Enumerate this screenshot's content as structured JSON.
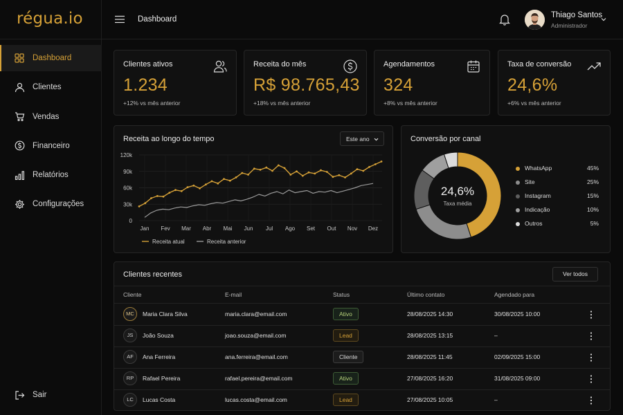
{
  "app": {
    "logo": "régua.io"
  },
  "sidebar": {
    "items": [
      {
        "label": "Dashboard",
        "icon": "grid-icon",
        "active": true
      },
      {
        "label": "Clientes",
        "icon": "user-icon"
      },
      {
        "label": "Vendas",
        "icon": "cart-icon"
      },
      {
        "label": "Financeiro",
        "icon": "dollar-icon"
      },
      {
        "label": "Relatórios",
        "icon": "bar-chart-icon"
      },
      {
        "label": "Configurações",
        "icon": "gear-icon"
      }
    ],
    "logout_label": "Sair"
  },
  "header": {
    "title": "Dashboard",
    "user_name": "Thiago Santos",
    "user_role": "Administrador"
  },
  "kpis": [
    {
      "label": "Clientes ativos",
      "value": "1.234",
      "sub": "+12% vs mês anterior",
      "icon": "users-icon"
    },
    {
      "label": "Receita do mês",
      "value": "R$ 98.765,43",
      "sub": "+18% vs mês anterior",
      "icon": "dollar-circle-icon"
    },
    {
      "label": "Agendamentos",
      "value": "324",
      "sub": "+8% vs mês anterior",
      "icon": "calendar-icon"
    },
    {
      "label": "Taxa de conversão",
      "value": "24,6%",
      "sub": "+6% vs mês anterior",
      "icon": "trend-up-icon"
    }
  ],
  "revenue_card": {
    "title": "Receita ao longo do tempo",
    "period_select": "Este ano"
  },
  "conversion_card": {
    "title": "Conversão por canal",
    "center_value": "24,6%",
    "center_label": "Taxa média"
  },
  "colors": {
    "accent": "#d6a137",
    "background": "#0b0b0b",
    "card": "#111111",
    "secondary_line": "#9b9b9b"
  },
  "chart_data": [
    {
      "type": "line",
      "title": "Receita ao longo do tempo",
      "x_labels": [
        "Jan",
        "Fev",
        "Mar",
        "Abr",
        "Mai",
        "Jun",
        "Jul",
        "Ago",
        "Set",
        "Out",
        "Nov",
        "Dez"
      ],
      "yticks": [
        "120k",
        "90k",
        "60k",
        "30k",
        "0"
      ],
      "ylim": [
        0,
        120000
      ],
      "grid": true,
      "legend": "bottom",
      "series": [
        {
          "name": "Receita atual",
          "color": "#d6a137",
          "values": [
            26000,
            32000,
            41000,
            45000,
            44000,
            51000,
            56000,
            54000,
            61000,
            64000,
            59000,
            66000,
            72000,
            68000,
            76000,
            73000,
            79000,
            87000,
            84000,
            95000,
            93000,
            97000,
            91000,
            101000,
            96000,
            84000,
            90000,
            82000,
            88000,
            86000,
            92000,
            89000,
            80000,
            83000,
            79000,
            86000,
            94000,
            91000,
            98000,
            103000,
            108000
          ]
        },
        {
          "name": "Receita anterior",
          "color": "#9b9b9b",
          "values": [
            6000,
            14000,
            19000,
            21000,
            20000,
            23000,
            25000,
            24000,
            27000,
            29000,
            28000,
            31000,
            33000,
            32000,
            35000,
            38000,
            36000,
            39000,
            43000,
            48000,
            45000,
            50000,
            53000,
            49000,
            56000,
            51000,
            53000,
            55000,
            50000,
            53000,
            52000,
            55000,
            51000,
            54000,
            57000,
            60000,
            64000,
            66000,
            68000
          ]
        }
      ]
    },
    {
      "type": "pie",
      "title": "Conversão por canal",
      "slices": [
        {
          "name": "WhatsApp",
          "pct_label": "45%",
          "value": 45,
          "color": "#d6a137"
        },
        {
          "name": "Site",
          "pct_label": "25%",
          "value": 25,
          "color": "#8d8d8d"
        },
        {
          "name": "Instagram",
          "pct_label": "15%",
          "value": 15,
          "color": "#5e5e5e"
        },
        {
          "name": "Indicação",
          "pct_label": "10%",
          "value": 10,
          "color": "#9f9f9f"
        },
        {
          "name": "Outros",
          "pct_label": "5%",
          "value": 5,
          "color": "#dcdcdc"
        }
      ]
    }
  ],
  "table": {
    "title": "Clientes recentes",
    "view_all_label": "Ver todos",
    "columns": [
      "Cliente",
      "E-mail",
      "Status",
      "Último contato",
      "Agendado para"
    ],
    "rows": [
      {
        "initials": "MC",
        "name": "Maria Clara Silva",
        "email": "maria.clara@email.com",
        "status": "Ativo",
        "last_contact": "28/08/2025 14:30",
        "scheduled": "30/08/2025 10:00"
      },
      {
        "initials": "JS",
        "name": "João Souza",
        "email": "joao.souza@email.com",
        "status": "Lead",
        "last_contact": "28/08/2025 13:15",
        "scheduled": "–"
      },
      {
        "initials": "AF",
        "name": "Ana Ferreira",
        "email": "ana.ferreira@email.com",
        "status": "Cliente",
        "last_contact": "28/08/2025 11:45",
        "scheduled": "02/09/2025 15:00"
      },
      {
        "initials": "RP",
        "name": "Rafael Pereira",
        "email": "rafael.pereira@email.com",
        "status": "Ativo",
        "last_contact": "27/08/2025 16:20",
        "scheduled": "31/08/2025 09:00"
      },
      {
        "initials": "LC",
        "name": "Lucas Costa",
        "email": "lucas.costa@email.com",
        "status": "Lead",
        "last_contact": "27/08/2025 10:05",
        "scheduled": "–"
      }
    ]
  }
}
